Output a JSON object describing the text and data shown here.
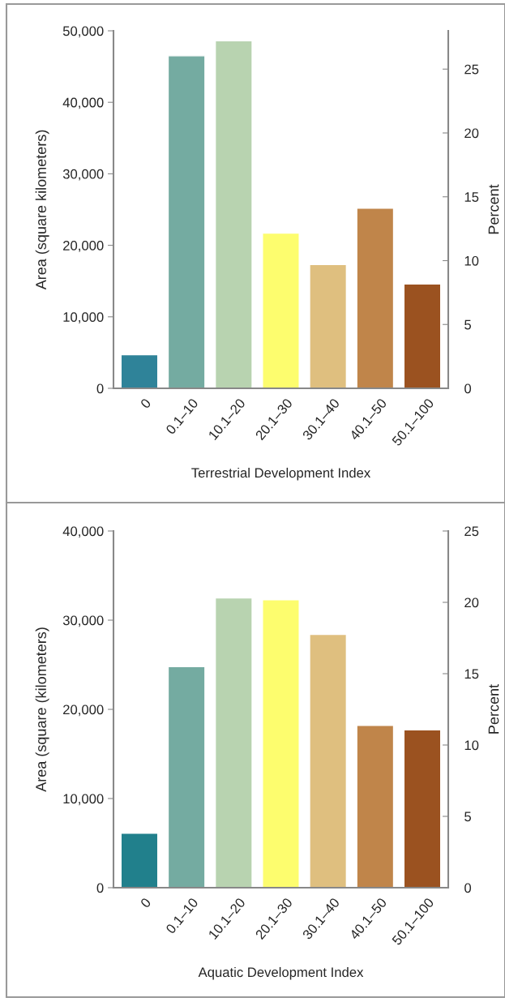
{
  "chart_data": [
    {
      "type": "bar",
      "xlabel": "Terrestrial Development Index",
      "ylabel": "Area (square kilometers)",
      "y2label": "Percent",
      "categories": [
        "0",
        "0.1–10",
        "10.1–20",
        "20.1–30",
        "30.1–40",
        "40.1–50",
        "50.1–100"
      ],
      "values": [
        4700,
        46500,
        48600,
        21700,
        17300,
        25200,
        14600
      ],
      "colors": [
        "#2f8399",
        "#74aba1",
        "#b8d3b0",
        "#fdfd6e",
        "#dfbf7f",
        "#c0854a",
        "#9b5220"
      ],
      "ylim": [
        0,
        50000
      ],
      "yticks": [
        {
          "value": 0,
          "label": "0"
        },
        {
          "value": 10000,
          "label": "10,000"
        },
        {
          "value": 20000,
          "label": "20,000"
        },
        {
          "value": 30000,
          "label": "30,000"
        },
        {
          "value": 40000,
          "label": "40,000"
        },
        {
          "value": 50000,
          "label": "50,000"
        }
      ],
      "y2lim": [
        0,
        28
      ],
      "y2ticks": [
        0,
        5,
        10,
        15,
        20,
        25
      ],
      "grid": false,
      "legend": false
    },
    {
      "type": "bar",
      "xlabel": "Aquatic Development Index",
      "ylabel": "Area (square (kilometers)",
      "y2label": "Percent",
      "categories": [
        "0",
        "0.1–10",
        "10.1–20",
        "20.1–30",
        "30.1–40",
        "40.1–50",
        "50.1–100"
      ],
      "values": [
        6100,
        24800,
        32500,
        32300,
        28400,
        18200,
        17700
      ],
      "colors": [
        "#21808c",
        "#74aba1",
        "#b8d3b0",
        "#fdfd6e",
        "#dfbf7f",
        "#c0854a",
        "#9b5220"
      ],
      "ylim": [
        0,
        40000
      ],
      "yticks": [
        {
          "value": 0,
          "label": "0"
        },
        {
          "value": 10000,
          "label": "10,000"
        },
        {
          "value": 20000,
          "label": "20,000"
        },
        {
          "value": 30000,
          "label": "30,000"
        },
        {
          "value": 40000,
          "label": "40,000"
        }
      ],
      "y2lim": [
        0,
        25
      ],
      "y2ticks": [
        0,
        5,
        10,
        15,
        20,
        25
      ],
      "grid": false,
      "legend": false
    }
  ]
}
